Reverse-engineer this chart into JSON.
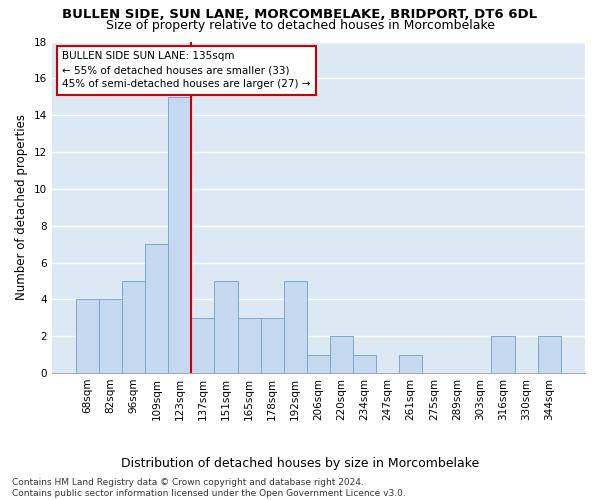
{
  "title": "BULLEN SIDE, SUN LANE, MORCOMBELAKE, BRIDPORT, DT6 6DL",
  "subtitle": "Size of property relative to detached houses in Morcombelake",
  "xlabel": "Distribution of detached houses by size in Morcombelake",
  "ylabel": "Number of detached properties",
  "categories": [
    "68sqm",
    "82sqm",
    "96sqm",
    "109sqm",
    "123sqm",
    "137sqm",
    "151sqm",
    "165sqm",
    "178sqm",
    "192sqm",
    "206sqm",
    "220sqm",
    "234sqm",
    "247sqm",
    "261sqm",
    "275sqm",
    "289sqm",
    "303sqm",
    "316sqm",
    "330sqm",
    "344sqm"
  ],
  "values": [
    4,
    4,
    5,
    7,
    15,
    3,
    5,
    3,
    3,
    5,
    1,
    2,
    1,
    0,
    1,
    0,
    0,
    0,
    2,
    0,
    2
  ],
  "bar_color": "#c6d9f0",
  "bar_edge_color": "#7aabcc",
  "vline_index": 5,
  "vline_color": "#cc0000",
  "annotation_text": "BULLEN SIDE SUN LANE: 135sqm\n← 55% of detached houses are smaller (33)\n45% of semi-detached houses are larger (27) →",
  "annotation_box_color": "#ffffff",
  "annotation_box_edge": "#cc0000",
  "ylim": [
    0,
    18
  ],
  "yticks": [
    0,
    2,
    4,
    6,
    8,
    10,
    12,
    14,
    16,
    18
  ],
  "footer": "Contains HM Land Registry data © Crown copyright and database right 2024.\nContains public sector information licensed under the Open Government Licence v3.0.",
  "title_fontsize": 9.5,
  "subtitle_fontsize": 9,
  "xlabel_fontsize": 9,
  "ylabel_fontsize": 8.5,
  "tick_fontsize": 7.5,
  "annotation_fontsize": 7.5,
  "footer_fontsize": 6.5
}
